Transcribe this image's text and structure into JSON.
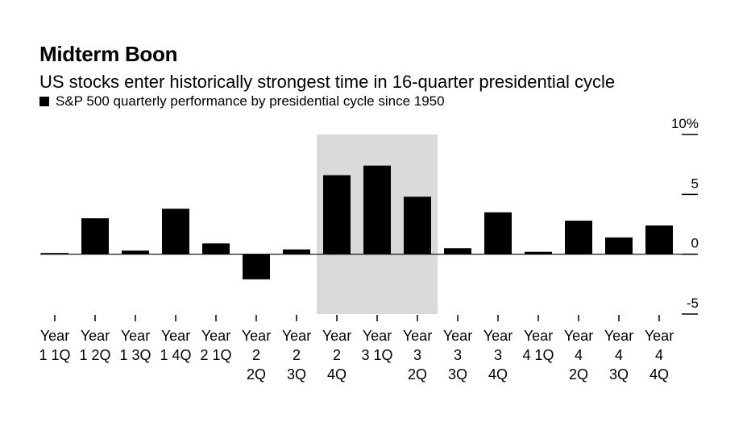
{
  "chart_data": {
    "type": "bar",
    "title": "Midterm Boon",
    "subtitle": "US stocks enter historically strongest time in 16-quarter presidential cycle",
    "legend": [
      {
        "label": "S&P 500 quarterly performance by presidential cycle since 1950",
        "color": "#000000"
      }
    ],
    "categories": [
      [
        "Year",
        "1 1Q"
      ],
      [
        "Year",
        "1 2Q"
      ],
      [
        "Year",
        "1 3Q"
      ],
      [
        "Year",
        "1 4Q"
      ],
      [
        "Year",
        "2 1Q"
      ],
      [
        "Year",
        "2",
        "2Q"
      ],
      [
        "Year",
        "2",
        "3Q"
      ],
      [
        "Year",
        "2",
        "4Q"
      ],
      [
        "Year",
        "3 1Q"
      ],
      [
        "Year",
        "3",
        "2Q"
      ],
      [
        "Year",
        "3",
        "3Q"
      ],
      [
        "Year",
        "3",
        "4Q"
      ],
      [
        "Year",
        "4 1Q"
      ],
      [
        "Year",
        "4",
        "2Q"
      ],
      [
        "Year",
        "4",
        "3Q"
      ],
      [
        "Year",
        "4",
        "4Q"
      ]
    ],
    "values": [
      0.1,
      3.0,
      0.3,
      3.8,
      0.9,
      -2.1,
      0.4,
      6.6,
      7.4,
      4.8,
      0.5,
      3.5,
      0.2,
      2.8,
      1.4,
      2.4
    ],
    "ylim": [
      -5,
      10
    ],
    "y_ticks": [
      -5,
      0,
      5,
      10
    ],
    "y_tick_labels": [
      "-5",
      "0",
      "5",
      "10%"
    ],
    "y_axis_position": "right",
    "highlight": {
      "from_index": 7,
      "to_index": 9,
      "color": "#dadada"
    },
    "bar_color": "#000000",
    "grid": false
  }
}
